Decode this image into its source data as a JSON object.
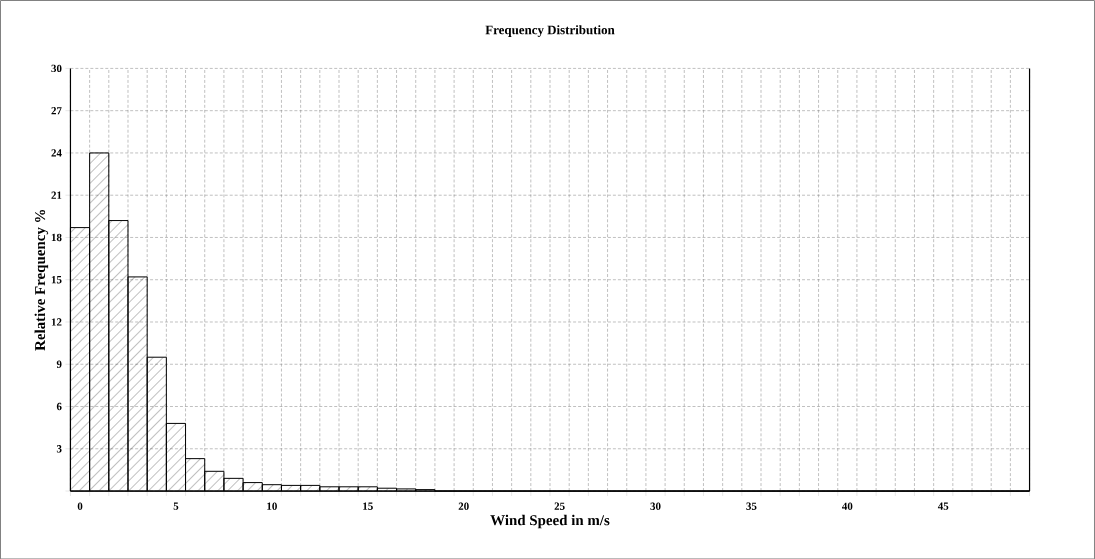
{
  "chart_data": {
    "type": "histogram",
    "title": "Frequency Distribution",
    "xlabel": "Wind Speed in m/s",
    "ylabel": "Relative Frequency %",
    "bins": [
      -0.5,
      0.5,
      1.5,
      2.5,
      3.5,
      4.5,
      5.5,
      6.5,
      7.5,
      8.5,
      9.5,
      10.5,
      11.5,
      12.5,
      13.5,
      14.5,
      15.5,
      16.5,
      17.5,
      18.5,
      19.5,
      20.5,
      21.5,
      22.5,
      23.5,
      24.5,
      25.5,
      26.5,
      27.5,
      28.5,
      29.5,
      30.5,
      31.5,
      32.5,
      33.5,
      34.5,
      35.5,
      36.5,
      37.5,
      38.5,
      39.5,
      40.5,
      41.5,
      42.5,
      43.5,
      44.5,
      45.5,
      46.5,
      47.5,
      48.5,
      49.5
    ],
    "values": [
      18.7,
      24,
      19.2,
      15.2,
      9.5,
      4.8,
      2.3,
      1.4,
      0.9,
      0.6,
      0.45,
      0.4,
      0.4,
      0.3,
      0.3,
      0.3,
      0.2,
      0.15,
      0.1,
      0,
      0,
      0,
      0,
      0,
      0,
      0,
      0,
      0,
      0,
      0,
      0,
      0,
      0,
      0,
      0,
      0,
      0,
      0,
      0,
      0,
      0,
      0,
      0,
      0,
      0,
      0,
      0,
      0,
      0,
      0
    ],
    "color": "#000000",
    "xlim": [
      -0.5,
      49.5
    ],
    "xticks": [
      0,
      5,
      10,
      15,
      20,
      25,
      30,
      35,
      40,
      45
    ],
    "ylim": [
      0,
      30
    ],
    "yticks": [
      {
        "value": 0,
        "label": null
      },
      3,
      6,
      9,
      12,
      15,
      18,
      21,
      24,
      27,
      30
    ],
    "grid": true
  }
}
